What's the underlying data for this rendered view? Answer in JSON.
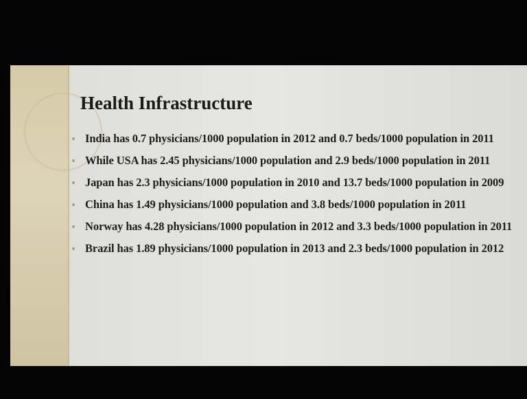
{
  "slide": {
    "title": "Health Infrastructure",
    "bullets": [
      "India has 0.7 physicians/1000 population in 2012 and 0.7 beds/1000 population in 2011",
      "While USA has 2.45 physicians/1000 population and 2.9 beds/1000 population in 2011",
      "Japan has 2.3 physicians/1000 population in 2010 and 13.7 beds/1000 population in 2009",
      "China has 1.49 physicians/1000 population and 3.8 beds/1000 population in 2011",
      "Norway has 4.28 physicians/1000 population in 2012 and 3.3 beds/1000 population in 2011",
      "Brazil has 1.89 physicians/1000 population in 2013 and 2.3 beds/1000 population in 2012"
    ]
  }
}
